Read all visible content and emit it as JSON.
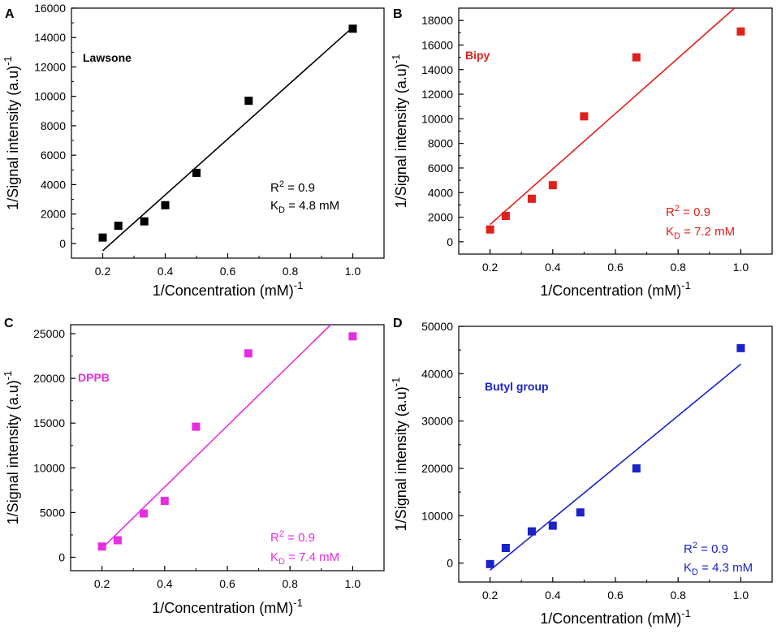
{
  "chart_data": [
    {
      "type": "scatter",
      "panel": "A",
      "title": "Lawsone",
      "color": "#000000",
      "xlabel": "1/Concentration (mM)",
      "xlabel_sup": "-1",
      "ylabel": "1/Signal intensity (a.u)",
      "ylabel_sup": "-1",
      "xlim": [
        0.1,
        1.1
      ],
      "ylim": [
        -1000,
        16000
      ],
      "xticks": [
        0.2,
        0.4,
        0.6,
        0.8,
        1.0
      ],
      "xtick_labels": [
        "0.2",
        "0.4",
        "0.6",
        "0.8",
        "1.0"
      ],
      "yticks": [
        0,
        2000,
        4000,
        6000,
        8000,
        10000,
        12000,
        14000,
        16000
      ],
      "ytick_labels": [
        "0",
        "2000",
        "4000",
        "6000",
        "8000",
        "10000",
        "12000",
        "14000",
        "16000"
      ],
      "points": [
        {
          "x": 0.2,
          "y": 400
        },
        {
          "x": 0.25,
          "y": 1200
        },
        {
          "x": 0.333,
          "y": 1500
        },
        {
          "x": 0.4,
          "y": 2600
        },
        {
          "x": 0.5,
          "y": 4800
        },
        {
          "x": 0.667,
          "y": 9700
        },
        {
          "x": 1.0,
          "y": 14600
        }
      ],
      "fit": {
        "x1": 0.2,
        "y1": -500,
        "x2": 1.0,
        "y2": 14700
      },
      "r2_base": "R",
      "r2_sup": "2",
      "r2_value": " = 0.9",
      "kd_base": "K",
      "kd_sub": "D",
      "kd_value": " = 4.8 mM"
    },
    {
      "type": "scatter",
      "panel": "B",
      "title": "Bipy",
      "color": "#e0201b",
      "xlabel": "1/Concentration (mM)",
      "xlabel_sup": "-1",
      "ylabel": "1/Signal intensity (a.u)",
      "ylabel_sup": "-1",
      "xlim": [
        0.1,
        1.1
      ],
      "ylim": [
        -1000,
        19000
      ],
      "xticks": [
        0.2,
        0.4,
        0.6,
        0.8,
        1.0
      ],
      "xtick_labels": [
        "0.2",
        "0.4",
        "0.6",
        "0.8",
        "1.0"
      ],
      "yticks": [
        0,
        2000,
        4000,
        6000,
        8000,
        10000,
        12000,
        14000,
        16000,
        18000
      ],
      "ytick_labels": [
        "0",
        "2000",
        "4000",
        "6000",
        "8000",
        "10000",
        "12000",
        "14000",
        "16000",
        "18000"
      ],
      "points": [
        {
          "x": 0.2,
          "y": 1000
        },
        {
          "x": 0.25,
          "y": 2100
        },
        {
          "x": 0.333,
          "y": 3500
        },
        {
          "x": 0.4,
          "y": 4600
        },
        {
          "x": 0.5,
          "y": 10200
        },
        {
          "x": 0.667,
          "y": 15000
        },
        {
          "x": 1.0,
          "y": 17100
        }
      ],
      "fit": {
        "x1": 0.2,
        "y1": 1400,
        "x2": 0.98,
        "y2": 19000
      },
      "r2_base": "R",
      "r2_sup": "2",
      "r2_value": " = 0.9",
      "kd_base": "K",
      "kd_sub": "D",
      "kd_value": " = 7.2 mM"
    },
    {
      "type": "scatter",
      "panel": "C",
      "title": "DPPB",
      "color": "#e62ee0",
      "xlabel": "1/Concentration (mM)",
      "xlabel_sup": "-1",
      "ylabel": "1/Signal intensity (a.u)",
      "ylabel_sup": "-1",
      "xlim": [
        0.1,
        1.1
      ],
      "ylim": [
        -1500,
        26000
      ],
      "xticks": [
        0.2,
        0.4,
        0.6,
        0.8,
        1.0
      ],
      "xtick_labels": [
        "0.2",
        "0.4",
        "0.6",
        "0.8",
        "1.0"
      ],
      "yticks": [
        0,
        5000,
        10000,
        15000,
        20000,
        25000
      ],
      "ytick_labels": [
        "0",
        "5000",
        "10000",
        "15000",
        "20000",
        "25000"
      ],
      "points": [
        {
          "x": 0.2,
          "y": 1200
        },
        {
          "x": 0.25,
          "y": 1900
        },
        {
          "x": 0.333,
          "y": 4900
        },
        {
          "x": 0.4,
          "y": 6300
        },
        {
          "x": 0.5,
          "y": 14600
        },
        {
          "x": 0.667,
          "y": 22800
        },
        {
          "x": 1.0,
          "y": 24700
        }
      ],
      "fit": {
        "x1": 0.2,
        "y1": 1000,
        "x2": 0.93,
        "y2": 26000
      },
      "r2_base": "R",
      "r2_sup": "2",
      "r2_value": " = 0.9",
      "kd_base": "K",
      "kd_sub": "D",
      "kd_value": " = 7.4 mM"
    },
    {
      "type": "scatter",
      "panel": "D",
      "title": "Butyl group",
      "color": "#1a22c9",
      "xlabel": "1/Concentration (mM)",
      "xlabel_sup": "-1",
      "ylabel": "1/Signal intensity (a.u)",
      "ylabel_sup": "-1",
      "xlim": [
        0.1,
        1.1
      ],
      "ylim": [
        -4000,
        50000
      ],
      "xticks": [
        0.2,
        0.4,
        0.6,
        0.8,
        1.0
      ],
      "xtick_labels": [
        "0.2",
        "0.4",
        "0.6",
        "0.8",
        "1.0"
      ],
      "yticks": [
        0,
        10000,
        20000,
        30000,
        40000,
        50000
      ],
      "ytick_labels": [
        "0",
        "10000",
        "20000",
        "30000",
        "40000",
        "50000"
      ],
      "points": [
        {
          "x": 0.2,
          "y": -200
        },
        {
          "x": 0.25,
          "y": 3200
        },
        {
          "x": 0.333,
          "y": 6700
        },
        {
          "x": 0.4,
          "y": 7900
        },
        {
          "x": 0.488,
          "y": 10700
        },
        {
          "x": 0.667,
          "y": 20000
        },
        {
          "x": 1.0,
          "y": 45400
        }
      ],
      "fit": {
        "x1": 0.2,
        "y1": -1500,
        "x2": 1.0,
        "y2": 42000
      },
      "r2_base": "R",
      "r2_sup": "2",
      "r2_value": " = 0.9",
      "kd_base": "K",
      "kd_sub": "D",
      "kd_value": " = 4.3 mM"
    }
  ]
}
